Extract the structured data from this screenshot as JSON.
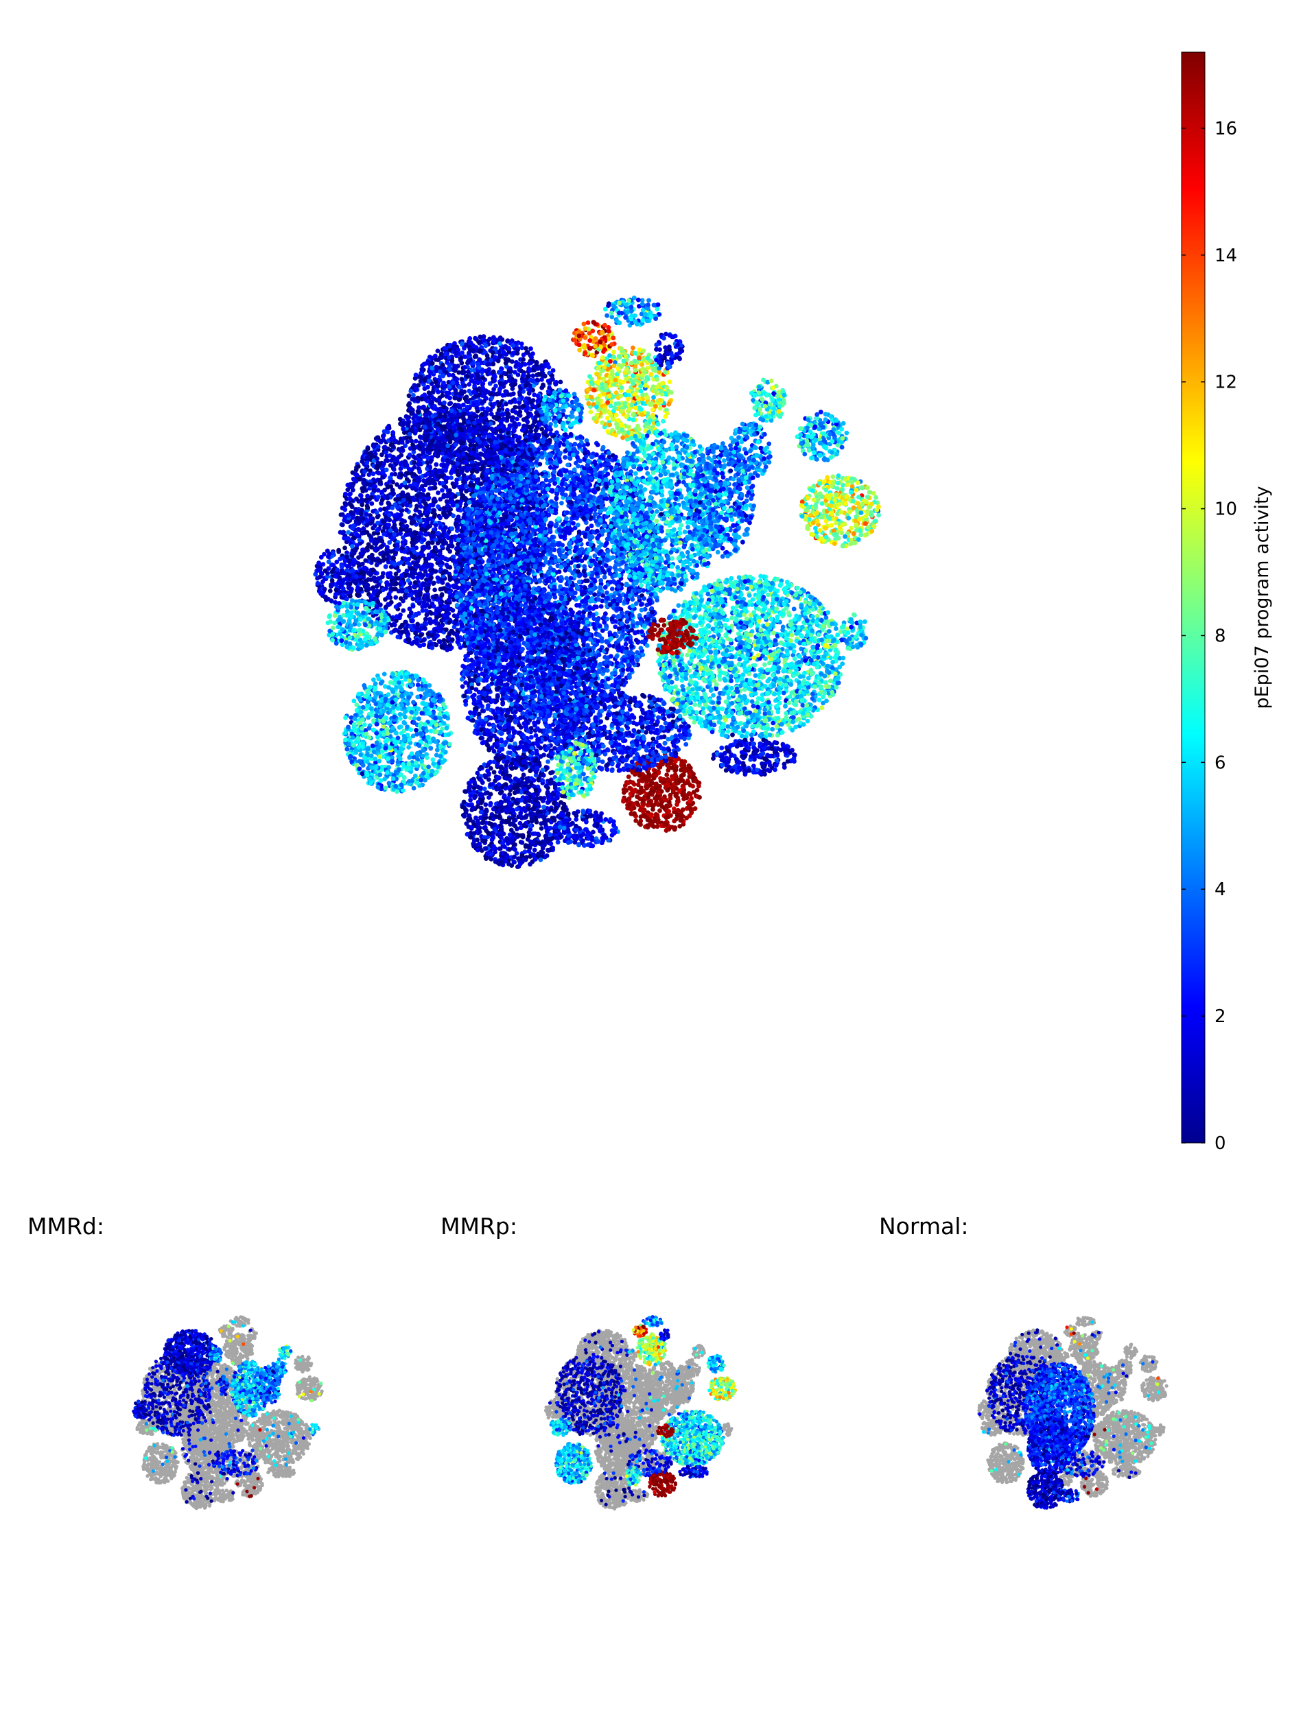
{
  "chart_data": {
    "type": "scatter",
    "title": "",
    "colorbar": {
      "label": "pEpi07 program activity",
      "min": 0,
      "max": 17.2,
      "ticks": [
        0,
        2,
        4,
        6,
        8,
        10,
        12,
        14,
        16
      ],
      "colormap": "jet"
    },
    "point_color_other": "#a6a6a6",
    "panels": [
      {
        "title": "MMRd:"
      },
      {
        "title": "MMRp:"
      },
      {
        "title": "Normal:"
      }
    ],
    "clusters": [
      {
        "x": -4.2,
        "y": 2.1,
        "rx": 2.9,
        "ry": 3.4,
        "activity": 1.2,
        "group": "mixed"
      },
      {
        "x": -1.0,
        "y": 0.8,
        "rx": 2.9,
        "ry": 4.0,
        "activity": 3.0,
        "group": "normal"
      },
      {
        "x": -3.0,
        "y": 5.6,
        "rx": 2.2,
        "ry": 1.9,
        "activity": 1.4,
        "group": "mmrd"
      },
      {
        "x": -1.8,
        "y": -2.2,
        "rx": 1.9,
        "ry": 2.4,
        "activity": 2.0,
        "group": "normal"
      },
      {
        "x": -2.2,
        "y": -5.8,
        "rx": 1.5,
        "ry": 1.6,
        "activity": 1.0,
        "group": "normal"
      },
      {
        "x": -5.5,
        "y": -3.6,
        "rx": 1.5,
        "ry": 1.7,
        "activity": 5.4,
        "group": "mmrp"
      },
      {
        "x": -6.6,
        "y": -0.6,
        "rx": 0.9,
        "ry": 0.7,
        "activity": 5.8,
        "group": "mmrp"
      },
      {
        "x": -7.2,
        "y": 0.8,
        "rx": 0.6,
        "ry": 0.8,
        "activity": 1.5,
        "group": "mmrd"
      },
      {
        "x": 1.0,
        "y": 5.9,
        "rx": 1.2,
        "ry": 1.3,
        "activity": 9.5,
        "group": "mmrp"
      },
      {
        "x": 0.0,
        "y": 7.4,
        "rx": 0.6,
        "ry": 0.5,
        "activity": 13.5,
        "group": "mmrp"
      },
      {
        "x": 1.1,
        "y": 8.2,
        "rx": 0.8,
        "ry": 0.4,
        "activity": 5.0,
        "group": "mmrp"
      },
      {
        "x": -0.9,
        "y": 5.4,
        "rx": 0.6,
        "ry": 0.6,
        "activity": 4.5,
        "group": "mmrd"
      },
      {
        "x": 2.1,
        "y": 7.1,
        "rx": 0.4,
        "ry": 0.5,
        "activity": 1.6,
        "group": "mmrp"
      },
      {
        "x": 2.0,
        "y": 2.6,
        "rx": 1.6,
        "ry": 2.3,
        "activity": 5.2,
        "group": "mmrd"
      },
      {
        "x": 3.6,
        "y": 2.9,
        "rx": 0.9,
        "ry": 1.6,
        "activity": 4.0,
        "group": "mmrd"
      },
      {
        "x": 4.4,
        "y": 4.3,
        "rx": 0.6,
        "ry": 0.8,
        "activity": 4.3,
        "group": "mmrd"
      },
      {
        "x": 4.9,
        "y": 5.7,
        "rx": 0.5,
        "ry": 0.6,
        "activity": 6.8,
        "group": "mmrd"
      },
      {
        "x": 6.4,
        "y": 4.7,
        "rx": 0.7,
        "ry": 0.7,
        "activity": 5.3,
        "group": "mmrp"
      },
      {
        "x": 6.9,
        "y": 2.6,
        "rx": 1.1,
        "ry": 1.0,
        "activity": 9.5,
        "group": "mmrp"
      },
      {
        "x": 7.3,
        "y": -0.8,
        "rx": 0.4,
        "ry": 0.5,
        "activity": 5.5,
        "group": "mmrd"
      },
      {
        "x": 4.4,
        "y": -1.5,
        "rx": 2.6,
        "ry": 2.3,
        "activity": 6.0,
        "group": "mmrp"
      },
      {
        "x": 2.2,
        "y": -0.9,
        "rx": 0.7,
        "ry": 0.5,
        "activity": 17.2,
        "group": "mmrp"
      },
      {
        "x": 1.9,
        "y": -5.3,
        "rx": 1.1,
        "ry": 1.1,
        "activity": 17.2,
        "group": "mmrp"
      },
      {
        "x": 0.8,
        "y": -3.6,
        "rx": 1.9,
        "ry": 1.1,
        "activity": 2.3,
        "group": "mixed"
      },
      {
        "x": -0.5,
        "y": -4.7,
        "rx": 0.6,
        "ry": 0.8,
        "activity": 6.5,
        "group": "mmrp"
      },
      {
        "x": -0.2,
        "y": -6.3,
        "rx": 0.9,
        "ry": 0.5,
        "activity": 2.0,
        "group": "normal"
      },
      {
        "x": 4.5,
        "y": -4.3,
        "rx": 1.2,
        "ry": 0.5,
        "activity": 1.5,
        "group": "mmrp"
      },
      {
        "x": -0.3,
        "y": 3.0,
        "rx": 0.4,
        "ry": 0.7,
        "activity": 2.5,
        "group": "mmrd"
      }
    ]
  }
}
